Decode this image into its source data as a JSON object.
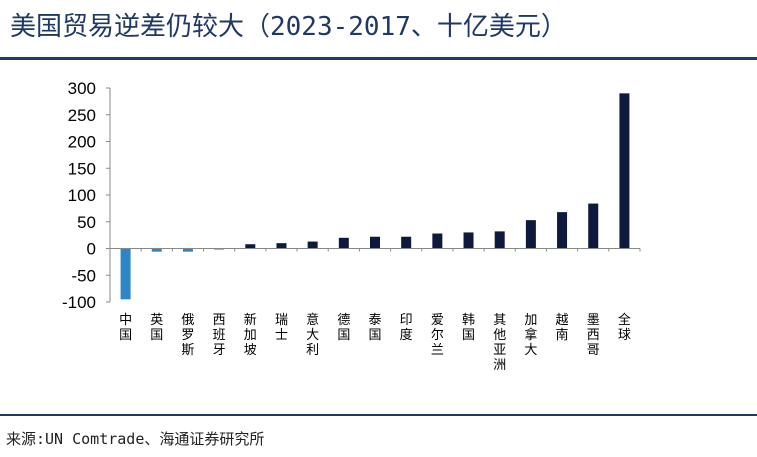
{
  "title": "美国贸易逆差仍较大（2023-2017、十亿美元）",
  "source": "来源:UN Comtrade、海通证券研究所",
  "colors": {
    "title": "#1f3864",
    "rule": "#1f3864",
    "positive_bar": "#0e1a3d",
    "negative_bar": "#2e86c8",
    "axis": "#888888"
  },
  "chart_data": {
    "type": "bar",
    "title": "",
    "xlabel": "",
    "ylabel": "",
    "ylim": [
      -100,
      300
    ],
    "yticks": [
      300,
      250,
      200,
      150,
      100,
      50,
      0,
      -50,
      -100
    ],
    "grid": false,
    "legend": "none",
    "categories": [
      "中国",
      "英国",
      "俄罗斯",
      "西班牙",
      "新加坡",
      "瑞士",
      "意大利",
      "德国",
      "泰国",
      "印度",
      "爱尔兰",
      "韩国",
      "其他亚洲",
      "加拿大",
      "越南",
      "墨西哥",
      "全球"
    ],
    "values": [
      -95,
      -6,
      -6,
      -2,
      8,
      10,
      13,
      20,
      22,
      22,
      28,
      30,
      32,
      53,
      68,
      84,
      290
    ]
  }
}
